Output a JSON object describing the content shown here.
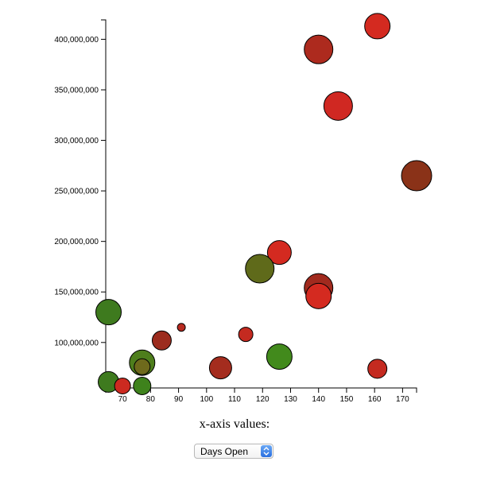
{
  "chart_data": {
    "type": "scatter",
    "subtype": "bubble",
    "xlabel": "x-axis values:",
    "ylabel": "",
    "xlim": [
      64,
      175
    ],
    "ylim": [
      55000000,
      420000000
    ],
    "x_ticks": [
      70,
      80,
      90,
      100,
      110,
      120,
      130,
      140,
      150,
      160,
      170
    ],
    "y_ticks": [
      100000000,
      150000000,
      200000000,
      250000000,
      300000000,
      350000000,
      400000000
    ],
    "y_tick_labels": [
      "100,000,000",
      "150,000,000",
      "200,000,000",
      "250,000,000",
      "300,000,000",
      "350,000,000",
      "400,000,000"
    ],
    "points": [
      {
        "x": 161,
        "y": 413000000,
        "size": 16,
        "color": "#d42a20"
      },
      {
        "x": 140,
        "y": 390000000,
        "size": 18,
        "color": "#ad2a1e"
      },
      {
        "x": 147,
        "y": 334000000,
        "size": 18,
        "color": "#d02822"
      },
      {
        "x": 175,
        "y": 265000000,
        "size": 19,
        "color": "#8a3218"
      },
      {
        "x": 126,
        "y": 189000000,
        "size": 15,
        "color": "#d42a20"
      },
      {
        "x": 119,
        "y": 173000000,
        "size": 18,
        "color": "#5f6a1a"
      },
      {
        "x": 140,
        "y": 154000000,
        "size": 18,
        "color": "#a12a1e"
      },
      {
        "x": 140,
        "y": 146000000,
        "size": 16,
        "color": "#d42a20"
      },
      {
        "x": 65,
        "y": 130000000,
        "size": 16,
        "color": "#3e7a1e"
      },
      {
        "x": 91,
        "y": 115000000,
        "size": 5,
        "color": "#b82a20"
      },
      {
        "x": 114,
        "y": 108000000,
        "size": 9,
        "color": "#c42a20"
      },
      {
        "x": 84,
        "y": 102000000,
        "size": 12,
        "color": "#9c2c1e"
      },
      {
        "x": 126,
        "y": 86000000,
        "size": 16,
        "color": "#428a1c"
      },
      {
        "x": 77,
        "y": 80000000,
        "size": 16,
        "color": "#4e7e1c"
      },
      {
        "x": 77,
        "y": 76000000,
        "size": 10,
        "color": "#6e6a1c"
      },
      {
        "x": 105,
        "y": 75000000,
        "size": 14,
        "color": "#a42c1e"
      },
      {
        "x": 161,
        "y": 74000000,
        "size": 12,
        "color": "#c42a20"
      },
      {
        "x": 65,
        "y": 61000000,
        "size": 13,
        "color": "#3e7a1e"
      },
      {
        "x": 70,
        "y": 57000000,
        "size": 10,
        "color": "#cc2a20"
      },
      {
        "x": 77,
        "y": 57000000,
        "size": 11,
        "color": "#3e821c"
      }
    ]
  },
  "controls": {
    "x_axis_title": "x-axis values:",
    "select_value": "Days Open"
  }
}
